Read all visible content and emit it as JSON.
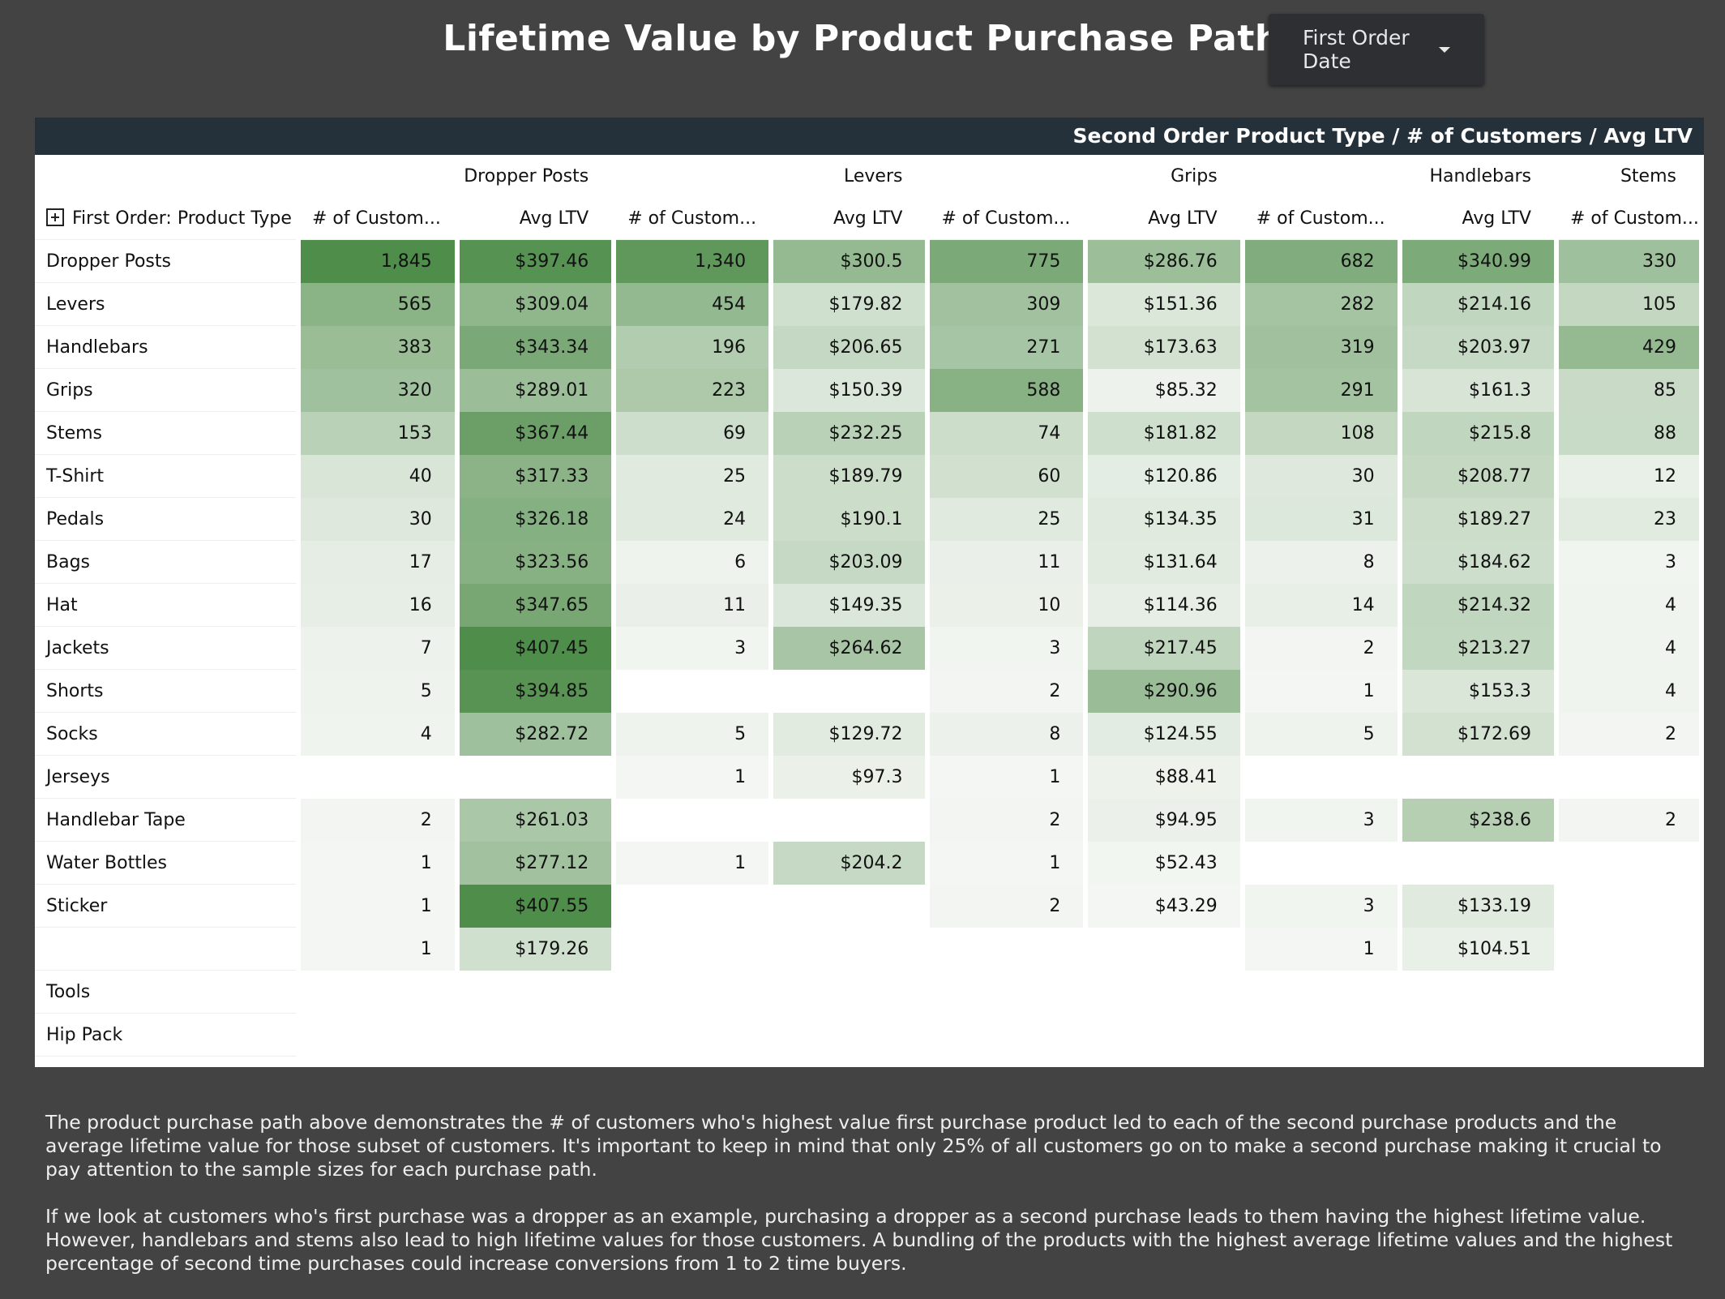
{
  "title": "Lifetime Value by Product Purchase Path",
  "filter": {
    "label": "First Order Date",
    "icon": "caret-down-icon"
  },
  "table": {
    "header": "Second Order Product Type / # of Customers / Avg LTV",
    "row_header": "First Order: Product Type",
    "products": [
      "Dropper Posts",
      "Levers",
      "Grips",
      "Handlebars",
      "Stems"
    ],
    "count_label": "# of Custom...",
    "ltv_label": "Avg LTV",
    "rows": [
      {
        "label": "Dropper Posts",
        "cells": [
          "1,845",
          "$397.46",
          "1,340",
          "$300.5",
          "775",
          "$286.76",
          "682",
          "$340.99",
          "330"
        ]
      },
      {
        "label": "Levers",
        "cells": [
          "565",
          "$309.04",
          "454",
          "$179.82",
          "309",
          "$151.36",
          "282",
          "$214.16",
          "105"
        ]
      },
      {
        "label": "Handlebars",
        "cells": [
          "383",
          "$343.34",
          "196",
          "$206.65",
          "271",
          "$173.63",
          "319",
          "$203.97",
          "429"
        ]
      },
      {
        "label": "Grips",
        "cells": [
          "320",
          "$289.01",
          "223",
          "$150.39",
          "588",
          "$85.32",
          "291",
          "$161.3",
          "85"
        ]
      },
      {
        "label": "Stems",
        "cells": [
          "153",
          "$367.44",
          "69",
          "$232.25",
          "74",
          "$181.82",
          "108",
          "$215.8",
          "88"
        ]
      },
      {
        "label": "T-Shirt",
        "cells": [
          "40",
          "$317.33",
          "25",
          "$189.79",
          "60",
          "$120.86",
          "30",
          "$208.77",
          "12"
        ]
      },
      {
        "label": "Pedals",
        "cells": [
          "30",
          "$326.18",
          "24",
          "$190.1",
          "25",
          "$134.35",
          "31",
          "$189.27",
          "23"
        ]
      },
      {
        "label": "Bags",
        "cells": [
          "17",
          "$323.56",
          "6",
          "$203.09",
          "11",
          "$131.64",
          "8",
          "$184.62",
          "3"
        ]
      },
      {
        "label": "Hat",
        "cells": [
          "16",
          "$347.65",
          "11",
          "$149.35",
          "10",
          "$114.36",
          "14",
          "$214.32",
          "4"
        ]
      },
      {
        "label": "Jackets",
        "cells": [
          "7",
          "$407.45",
          "3",
          "$264.62",
          "3",
          "$217.45",
          "2",
          "$213.27",
          "4"
        ]
      },
      {
        "label": "Shorts",
        "cells": [
          "5",
          "$394.85",
          "",
          "",
          "2",
          "$290.96",
          "1",
          "$153.3",
          "4"
        ]
      },
      {
        "label": "Socks",
        "cells": [
          "4",
          "$282.72",
          "5",
          "$129.72",
          "8",
          "$124.55",
          "5",
          "$172.69",
          "2"
        ]
      },
      {
        "label": "Jerseys",
        "cells": [
          "",
          "",
          "1",
          "$97.3",
          "1",
          "$88.41",
          "",
          "",
          ""
        ]
      },
      {
        "label": "Handlebar Tape",
        "cells": [
          "2",
          "$261.03",
          "",
          "",
          "2",
          "$94.95",
          "3",
          "$238.6",
          "2"
        ]
      },
      {
        "label": "Water Bottles",
        "cells": [
          "1",
          "$277.12",
          "1",
          "$204.2",
          "1",
          "$52.43",
          "",
          "",
          ""
        ]
      },
      {
        "label": "Sticker",
        "cells": [
          "1",
          "$407.55",
          "",
          "",
          "2",
          "$43.29",
          "3",
          "$133.19",
          ""
        ]
      },
      {
        "label": "",
        "cells": [
          "1",
          "$179.26",
          "",
          "",
          "",
          "",
          "1",
          "$104.51",
          ""
        ]
      },
      {
        "label": "Tools",
        "cells": [
          "",
          "",
          "",
          "",
          "",
          "",
          "",
          "",
          ""
        ]
      },
      {
        "label": "Hip Pack",
        "cells": [
          "",
          "",
          "",
          "",
          "",
          "",
          "",
          "",
          ""
        ]
      }
    ]
  },
  "footnote": [
    "The product purchase path above demonstrates the # of customers who's highest value first purchase product led to each of the second purchase products and the average lifetime value for those subset of customers. It's important to keep in mind that  only 25% of all customers go on to make a second purchase making it crucial to pay attention to the sample sizes for each purchase path.",
    "If we look at customers who's first purchase was a dropper as an example, purchasing a dropper as a second purchase leads to them having the highest lifetime value. However, handlebars and stems also lead to high lifetime values for those customers. A bundling of the products with the highest average lifetime values and the highest percentage of second time purchases could increase conversions from 1 to 2 time buyers."
  ],
  "colors": {
    "background": "#434343",
    "header_bar": "#25313a",
    "heat_low": "#f3f6f2",
    "heat_high": "#4a8a45"
  }
}
